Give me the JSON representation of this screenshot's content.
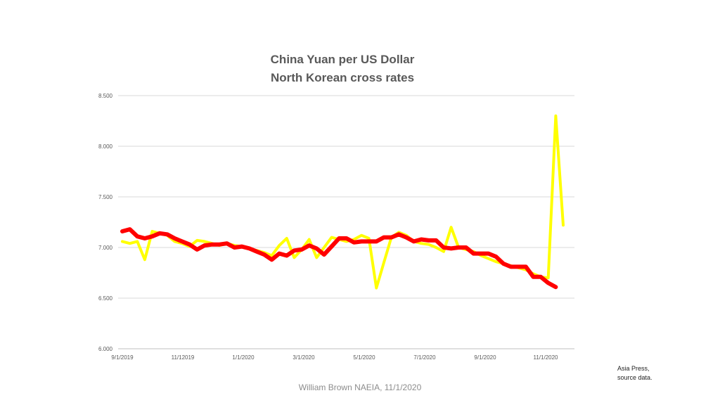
{
  "chart_data": {
    "type": "line",
    "title_line1": "China Yuan per US Dollar",
    "title_line2": "North Korean  cross rates",
    "ylim": [
      6.0,
      8.5
    ],
    "y_ticks": [
      "8.500",
      "8.000",
      "7.500",
      "7.000",
      "6.500",
      "6.000"
    ],
    "y_tick_values": [
      8.5,
      8.0,
      7.5,
      7.0,
      6.5,
      6.0
    ],
    "x_ticks": [
      "9/1/2019",
      "11/12019",
      "1/1/2020",
      "3/1/2020",
      "5/1/2020",
      "7/1/2020",
      "9/1/2020",
      "11/1/2020"
    ],
    "grid": true,
    "series": [
      {
        "color": "#ffff00",
        "values": [
          7.06,
          7.04,
          7.06,
          6.88,
          7.16,
          7.14,
          7.12,
          7.06,
          7.04,
          7.01,
          7.07,
          7.06,
          7.04,
          7.02,
          7.04,
          7.02,
          7.01,
          6.99,
          6.97,
          6.95,
          6.92,
          7.02,
          7.09,
          6.9,
          6.98,
          7.08,
          6.9,
          7.0,
          7.1,
          7.08,
          7.06,
          7.08,
          7.12,
          7.09,
          6.6,
          6.85,
          7.1,
          7.15,
          7.12,
          7.06,
          7.04,
          7.03,
          7.0,
          6.96,
          7.2,
          7.0,
          6.98,
          6.96,
          6.92,
          6.89,
          6.86,
          6.84,
          6.82,
          6.8,
          6.78,
          6.74,
          6.71,
          6.7,
          8.3,
          7.22
        ]
      },
      {
        "color": "#ff0000",
        "values": [
          7.16,
          7.18,
          7.11,
          7.09,
          7.11,
          7.14,
          7.13,
          7.09,
          7.06,
          7.03,
          6.98,
          7.02,
          7.03,
          7.03,
          7.04,
          7.0,
          7.01,
          6.99,
          6.96,
          6.93,
          6.88,
          6.94,
          6.92,
          6.97,
          6.98,
          7.02,
          6.99,
          6.93,
          7.01,
          7.09,
          7.09,
          7.05,
          7.06,
          7.06,
          7.06,
          7.1,
          7.1,
          7.13,
          7.1,
          7.06,
          7.08,
          7.07,
          7.07,
          7.0,
          6.99,
          7.0,
          7.0,
          6.94,
          6.94,
          6.94,
          6.91,
          6.84,
          6.81,
          6.81,
          6.81,
          6.71,
          6.71,
          6.65,
          6.61
        ]
      }
    ]
  },
  "source_line1": "Asia Press,",
  "source_line2": "source data.",
  "footer": "William Brown NAEIA, 11/1/2020"
}
